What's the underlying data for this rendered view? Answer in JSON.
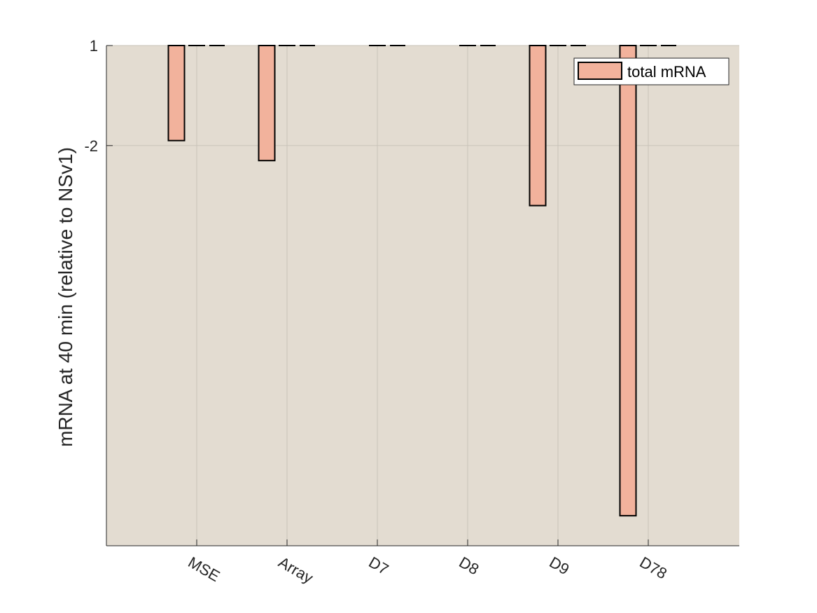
{
  "chart_data": {
    "type": "bar",
    "categories": [
      "MSE",
      "Array",
      "D7",
      "D8",
      "D9",
      "D78"
    ],
    "ylabel": "mRNA at 40 min (relative to NSv1)",
    "xlabel": "",
    "title": "",
    "y_tick_labels": [
      "1",
      "-2"
    ],
    "y_tick_values": [
      1,
      -2
    ],
    "ylim": [
      -14.0,
      1
    ],
    "grid": true,
    "legend_placement": "top-right",
    "series": [
      {
        "name": "total mRNA",
        "values": [
          -1.85,
          -2.45,
          null,
          null,
          -3.8,
          -13.1
        ]
      },
      {
        "values": [
          1,
          1,
          1,
          1,
          1,
          1
        ]
      }
    ],
    "colors": {
      "background": "#e3dcd1",
      "bar_fill": "#f2b29c",
      "bar_stroke": "#000000",
      "grid": "#c9c3b9",
      "axis": "#262626"
    }
  }
}
